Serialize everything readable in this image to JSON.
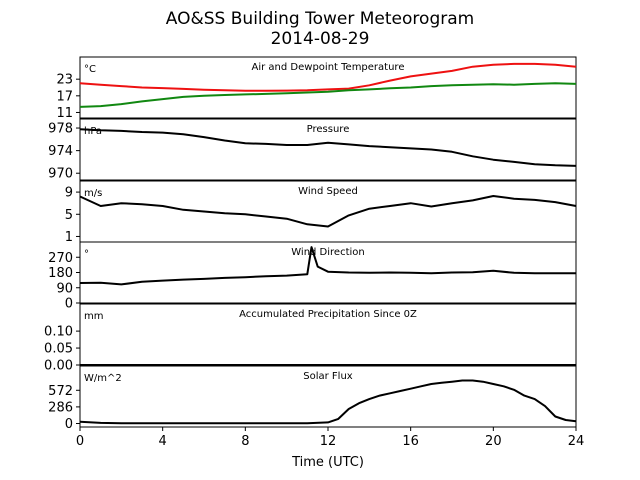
{
  "title": "AO&SS Building Tower Meteorogram",
  "subtitle": "2014-08-29",
  "xlabel": "Time (UTC)",
  "xticks": [
    "0",
    "4",
    "8",
    "12",
    "16",
    "20",
    "24"
  ],
  "colors": {
    "temperature": "#ee1111",
    "dewpoint": "#118811",
    "line": "#000000"
  },
  "chart_data": [
    {
      "type": "line",
      "title": "Air and Dewpoint Temperature",
      "unit": "°C",
      "ylim": [
        9,
        31
      ],
      "yticks": [
        11,
        17,
        23
      ],
      "x": [
        0,
        1,
        2,
        3,
        4,
        5,
        6,
        7,
        8,
        9,
        10,
        11,
        12,
        13,
        14,
        15,
        16,
        17,
        18,
        19,
        20,
        21,
        22,
        23,
        24
      ],
      "series": [
        {
          "values": [
            21.5,
            21.0,
            20.5,
            20.0,
            19.8,
            19.5,
            19.2,
            19.0,
            18.8,
            18.8,
            18.9,
            19.0,
            19.3,
            19.6,
            20.8,
            22.5,
            24.0,
            25.0,
            26.0,
            27.5,
            28.2,
            28.5,
            28.5,
            28.2,
            27.5
          ]
        },
        {
          "values": [
            13.0,
            13.3,
            14.0,
            15.0,
            15.8,
            16.6,
            17.0,
            17.3,
            17.5,
            17.7,
            17.9,
            18.2,
            18.5,
            19.0,
            19.3,
            19.7,
            20.0,
            20.5,
            20.8,
            21.0,
            21.2,
            21.0,
            21.3,
            21.5,
            21.3
          ]
        }
      ]
    },
    {
      "type": "line",
      "title": "Pressure",
      "unit": "hPa",
      "ylim": [
        968.8,
        979.6
      ],
      "yticks": [
        970,
        974,
        978
      ],
      "x": [
        0,
        1,
        2,
        3,
        4,
        5,
        6,
        7,
        8,
        9,
        10,
        11,
        12,
        13,
        14,
        15,
        16,
        17,
        18,
        19,
        20,
        21,
        22,
        23,
        24
      ],
      "series": [
        {
          "values": [
            977.8,
            977.6,
            977.5,
            977.3,
            977.2,
            976.9,
            976.4,
            975.8,
            975.3,
            975.2,
            975.0,
            975.0,
            975.4,
            975.1,
            974.8,
            974.6,
            974.4,
            974.2,
            973.8,
            973.0,
            972.4,
            972.0,
            971.6,
            971.4,
            971.3
          ]
        }
      ]
    },
    {
      "type": "line",
      "title": "Wind Speed",
      "unit": "m/s",
      "ylim": [
        0,
        11
      ],
      "yticks": [
        1,
        5,
        9
      ],
      "x": [
        0,
        1,
        2,
        3,
        4,
        5,
        6,
        7,
        8,
        9,
        10,
        11,
        12,
        13,
        14,
        15,
        16,
        17,
        18,
        19,
        20,
        21,
        22,
        23,
        24
      ],
      "series": [
        {
          "values": [
            8.2,
            6.5,
            7.0,
            6.8,
            6.5,
            5.8,
            5.5,
            5.2,
            5.0,
            4.6,
            4.2,
            3.2,
            2.8,
            4.8,
            6.0,
            6.5,
            7.0,
            6.4,
            7.0,
            7.5,
            8.3,
            7.8,
            7.6,
            7.2,
            6.5
          ]
        }
      ]
    },
    {
      "type": "line",
      "title": "Wind Direction",
      "unit": "°",
      "ylim": [
        0,
        360
      ],
      "yticks": [
        0,
        90,
        180,
        270
      ],
      "x": [
        0,
        1,
        2,
        3,
        4,
        5,
        6,
        7,
        8,
        9,
        10,
        11,
        11.2,
        11.5,
        12,
        13,
        14,
        15,
        16,
        17,
        18,
        19,
        20,
        21,
        22,
        23,
        24
      ],
      "series": [
        {
          "values": [
            118,
            120,
            110,
            125,
            132,
            138,
            142,
            148,
            152,
            158,
            162,
            170,
            330,
            215,
            185,
            180,
            178,
            180,
            178,
            176,
            180,
            182,
            190,
            178,
            175,
            176,
            175
          ]
        }
      ]
    },
    {
      "type": "line",
      "title": "Accumulated Precipitation Since 0Z",
      "unit": "mm",
      "ylim": [
        0,
        0.18
      ],
      "yticks": [
        "0.00",
        "0.05",
        "0.10"
      ],
      "x": [
        0,
        24
      ],
      "series": [
        {
          "values": [
            0,
            0
          ]
        }
      ]
    },
    {
      "type": "line",
      "title": "Solar Flux",
      "unit": "W/m^2",
      "ylim": [
        -60,
        990
      ],
      "yticks": [
        0,
        286,
        572
      ],
      "x": [
        0,
        1,
        2,
        4,
        6,
        8,
        10,
        11,
        12,
        12.5,
        13,
        13.5,
        14,
        14.5,
        15,
        15.5,
        16,
        16.5,
        17,
        17.5,
        18,
        18.5,
        19,
        19.5,
        20,
        20.5,
        21,
        21.5,
        22,
        22.5,
        23,
        23.5,
        24
      ],
      "series": [
        {
          "values": [
            30,
            10,
            5,
            5,
            5,
            5,
            5,
            5,
            20,
            80,
            250,
            350,
            420,
            480,
            520,
            560,
            600,
            640,
            680,
            700,
            720,
            740,
            740,
            720,
            680,
            640,
            580,
            480,
            420,
            300,
            120,
            60,
            40
          ]
        }
      ]
    }
  ]
}
